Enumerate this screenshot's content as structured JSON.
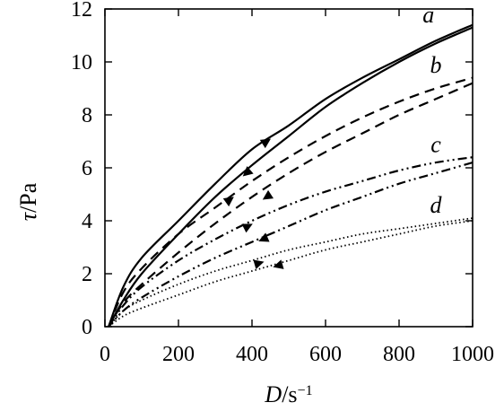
{
  "chart_data": {
    "type": "line",
    "xlabel": "D/s⁻¹",
    "ylabel": "τ/Pa",
    "xlabel_parts": {
      "symbol": "D",
      "unit": "/s",
      "exp": "−1"
    },
    "ylabel_parts": {
      "symbol": "τ",
      "unit": "/Pa"
    },
    "xlim": [
      0,
      1000
    ],
    "ylim": [
      0,
      12
    ],
    "x_ticks": [
      0,
      200,
      400,
      600,
      800,
      1000
    ],
    "y_ticks": [
      0,
      2,
      4,
      6,
      8,
      10,
      12
    ],
    "x_tick_labels": [
      "0",
      "200",
      "400",
      "600",
      "800",
      "1000"
    ],
    "y_tick_labels": [
      "0",
      "2",
      "4",
      "6",
      "8",
      "10",
      "12"
    ],
    "grid": false,
    "series": [
      {
        "label": "a",
        "style": "solid",
        "color": "#000000",
        "up": {
          "x": [
            10,
            50,
            100,
            200,
            300,
            400,
            500,
            600,
            700,
            800,
            900,
            1000
          ],
          "y": [
            0,
            1.5,
            2.6,
            4.0,
            5.4,
            6.7,
            7.6,
            8.6,
            9.4,
            10.1,
            10.8,
            11.4
          ]
        },
        "down": {
          "x": [
            1000,
            900,
            800,
            700,
            600,
            500,
            400,
            300,
            200,
            100,
            50,
            10
          ],
          "y": [
            11.3,
            10.7,
            10.0,
            9.2,
            8.3,
            7.2,
            6.1,
            4.9,
            3.5,
            2.0,
            1.0,
            0
          ]
        }
      },
      {
        "label": "b",
        "style": "dashed",
        "color": "#000000",
        "up": {
          "x": [
            10,
            50,
            100,
            200,
            300,
            400,
            500,
            600,
            700,
            800,
            900,
            1000
          ],
          "y": [
            0,
            1.3,
            2.2,
            3.5,
            4.5,
            5.5,
            6.4,
            7.2,
            7.9,
            8.5,
            9.0,
            9.4
          ]
        },
        "down": {
          "x": [
            1000,
            900,
            800,
            700,
            600,
            500,
            400,
            300,
            200,
            100,
            50,
            10
          ],
          "y": [
            9.2,
            8.6,
            8.0,
            7.3,
            6.6,
            5.8,
            4.9,
            3.9,
            2.8,
            1.6,
            0.9,
            0
          ]
        }
      },
      {
        "label": "c",
        "style": "dash-dot-dot",
        "color": "#000000",
        "up": {
          "x": [
            10,
            50,
            100,
            200,
            300,
            400,
            500,
            600,
            700,
            800,
            900,
            1000
          ],
          "y": [
            0,
            0.8,
            1.5,
            2.5,
            3.3,
            4.0,
            4.6,
            5.1,
            5.5,
            5.9,
            6.2,
            6.4
          ]
        },
        "down": {
          "x": [
            1000,
            900,
            800,
            700,
            600,
            500,
            400,
            300,
            200,
            100,
            50,
            10
          ],
          "y": [
            6.2,
            5.8,
            5.4,
            4.9,
            4.4,
            3.8,
            3.2,
            2.6,
            1.9,
            1.1,
            0.6,
            0
          ]
        }
      },
      {
        "label": "d",
        "style": "dotted",
        "color": "#000000",
        "up": {
          "x": [
            10,
            50,
            100,
            200,
            300,
            400,
            500,
            600,
            700,
            800,
            900,
            1000
          ],
          "y": [
            0,
            0.6,
            1.0,
            1.6,
            2.1,
            2.5,
            2.9,
            3.2,
            3.5,
            3.7,
            3.9,
            4.1
          ]
        },
        "down": {
          "x": [
            1000,
            900,
            800,
            700,
            600,
            500,
            400,
            300,
            200,
            100,
            50,
            10
          ],
          "y": [
            4.0,
            3.8,
            3.5,
            3.2,
            2.9,
            2.5,
            2.1,
            1.7,
            1.2,
            0.7,
            0.4,
            0
          ]
        }
      }
    ],
    "arrows": [
      {
        "series": "a",
        "x": 440,
        "y": 7.0,
        "dir": "up"
      },
      {
        "series": "a",
        "x": 385,
        "y": 5.8,
        "dir": "down"
      },
      {
        "series": "b",
        "x": 340,
        "y": 4.8,
        "dir": "up"
      },
      {
        "series": "b",
        "x": 440,
        "y": 4.9,
        "dir": "down"
      },
      {
        "series": "c",
        "x": 390,
        "y": 3.8,
        "dir": "up"
      },
      {
        "series": "c",
        "x": 430,
        "y": 3.3,
        "dir": "down"
      },
      {
        "series": "d",
        "x": 420,
        "y": 2.4,
        "dir": "up"
      },
      {
        "series": "d",
        "x": 470,
        "y": 2.3,
        "dir": "down"
      }
    ],
    "curve_labels": [
      {
        "text": "a",
        "x": 880,
        "y": 11.5
      },
      {
        "text": "b",
        "x": 900,
        "y": 9.6
      },
      {
        "text": "c",
        "x": 900,
        "y": 6.6
      },
      {
        "text": "d",
        "x": 900,
        "y": 4.3
      }
    ]
  }
}
